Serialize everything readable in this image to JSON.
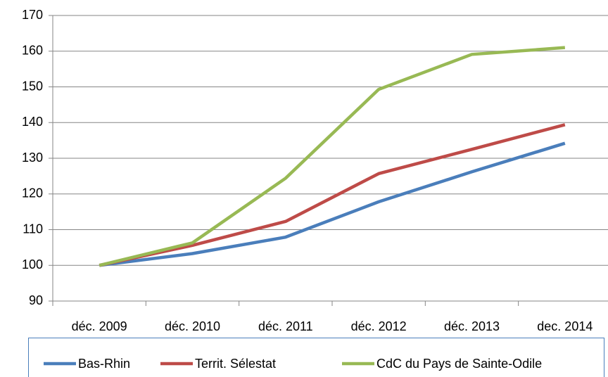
{
  "chart_data": {
    "type": "line",
    "categories": [
      "déc. 2009",
      "déc. 2010",
      "déc. 2011",
      "déc. 2012",
      "déc. 2013",
      "dec. 2014"
    ],
    "series": [
      {
        "name": "Bas-Rhin",
        "color": "#4a7ebb",
        "values": [
          100,
          103.3,
          107.9,
          117.8,
          126.2,
          134.2
        ]
      },
      {
        "name": "Territ. Sélestat",
        "color": "#be4b48",
        "values": [
          100,
          105.6,
          112.3,
          125.7,
          132.5,
          139.4
        ]
      },
      {
        "name": "CdC du Pays de Sainte-Odile",
        "color": "#98b954",
        "values": [
          100,
          106.3,
          124.4,
          149.3,
          159.1,
          161
        ]
      }
    ],
    "ylim": [
      90,
      170
    ],
    "yticks": [
      90,
      100,
      110,
      120,
      130,
      140,
      150,
      160,
      170
    ],
    "grid": true,
    "legend": "bottom"
  }
}
